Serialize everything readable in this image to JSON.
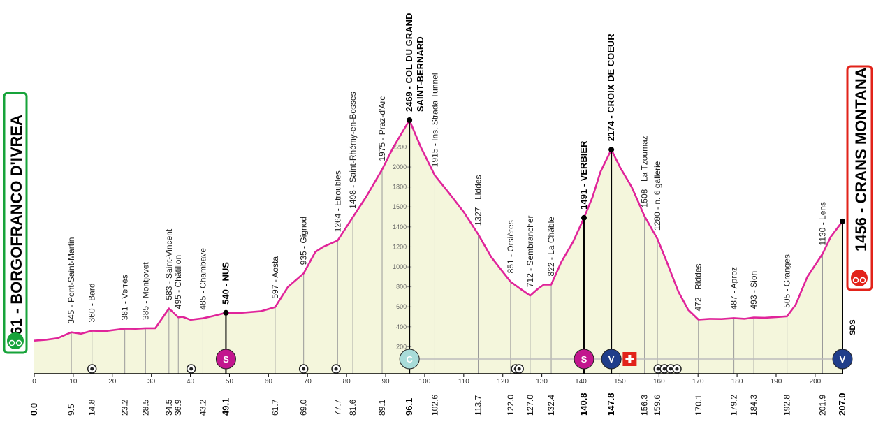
{
  "chart_data": {
    "type": "area",
    "title": "",
    "xlim": [
      0,
      207
    ],
    "ylim": [
      0,
      2469
    ],
    "y_ticks": [
      200,
      400,
      600,
      800,
      1000,
      1200,
      1400,
      1600,
      1800,
      2000,
      2200
    ],
    "x_ticks": [
      "0",
      "10",
      "20",
      "30",
      "40",
      "50",
      "60",
      "70",
      "80",
      "90",
      "100",
      "110",
      "120",
      "130",
      "140",
      "150",
      "160",
      "170",
      "180",
      "190",
      "200"
    ],
    "profile": [
      [
        0,
        261
      ],
      [
        3,
        270
      ],
      [
        6,
        285
      ],
      [
        9.5,
        345
      ],
      [
        12,
        330
      ],
      [
        14.8,
        360
      ],
      [
        18,
        355
      ],
      [
        23.2,
        381
      ],
      [
        26,
        380
      ],
      [
        28.5,
        385
      ],
      [
        31,
        385
      ],
      [
        34.5,
        583
      ],
      [
        36.9,
        495
      ],
      [
        38,
        500
      ],
      [
        40,
        470
      ],
      [
        43.2,
        485
      ],
      [
        46,
        510
      ],
      [
        49.1,
        540
      ],
      [
        53,
        540
      ],
      [
        58,
        555
      ],
      [
        61.7,
        597
      ],
      [
        65,
        800
      ],
      [
        69,
        935
      ],
      [
        72,
        1150
      ],
      [
        74,
        1200
      ],
      [
        77.7,
        1264
      ],
      [
        81.6,
        1498
      ],
      [
        85,
        1700
      ],
      [
        89.1,
        1975
      ],
      [
        92,
        2200
      ],
      [
        96.1,
        2469
      ],
      [
        99,
        2200
      ],
      [
        102.6,
        1915
      ],
      [
        106,
        1750
      ],
      [
        110,
        1550
      ],
      [
        113.7,
        1327
      ],
      [
        117,
        1100
      ],
      [
        120,
        950
      ],
      [
        122,
        851
      ],
      [
        124.5,
        780
      ],
      [
        127,
        712
      ],
      [
        129,
        780
      ],
      [
        130.5,
        822
      ],
      [
        132.4,
        822
      ],
      [
        135,
        1050
      ],
      [
        138,
        1250
      ],
      [
        140.8,
        1491
      ],
      [
        143,
        1700
      ],
      [
        145,
        1950
      ],
      [
        147.8,
        2174
      ],
      [
        150,
        2000
      ],
      [
        153,
        1800
      ],
      [
        156.3,
        1508
      ],
      [
        159.6,
        1280
      ],
      [
        162,
        1050
      ],
      [
        165,
        750
      ],
      [
        167.5,
        570
      ],
      [
        170.1,
        472
      ],
      [
        173,
        480
      ],
      [
        176,
        478
      ],
      [
        179.2,
        487
      ],
      [
        182,
        480
      ],
      [
        184.3,
        493
      ],
      [
        187,
        490
      ],
      [
        190,
        497
      ],
      [
        192.8,
        505
      ],
      [
        195,
        620
      ],
      [
        198,
        900
      ],
      [
        201.9,
        1130
      ],
      [
        204,
        1300
      ],
      [
        207,
        1456
      ]
    ],
    "places": [
      {
        "km": 9.5,
        "alt": 345,
        "label": "345 - Pont-Saint-Martin"
      },
      {
        "km": 14.8,
        "alt": 360,
        "label": "360 - Bard"
      },
      {
        "km": 23.2,
        "alt": 381,
        "label": "381 - Verrès"
      },
      {
        "km": 28.5,
        "alt": 385,
        "label": "385 - Montjovet"
      },
      {
        "km": 34.5,
        "alt": 583,
        "label": "583 - Saint-Vincent"
      },
      {
        "km": 36.9,
        "alt": 495,
        "label": "495 - Châtillon"
      },
      {
        "km": 43.2,
        "alt": 485,
        "label": "485 - Chambave"
      },
      {
        "km": 49.1,
        "alt": 540,
        "label": "540 - NUS",
        "bold": true
      },
      {
        "km": 61.7,
        "alt": 597,
        "label": "597 - Aosta"
      },
      {
        "km": 69.0,
        "alt": 935,
        "label": "935 - Gignod"
      },
      {
        "km": 77.7,
        "alt": 1264,
        "label": "1264 - Etroubles"
      },
      {
        "km": 81.6,
        "alt": 1498,
        "label": "1498 - Saint-Rhémy-en-Bosses"
      },
      {
        "km": 89.1,
        "alt": 1975,
        "label": "1975 - Praz-d'Arc"
      },
      {
        "km": 96.1,
        "alt": 2469,
        "label": "2469 - COL DU GRAND",
        "label2": "SAINT-BERNARD",
        "bold": true
      },
      {
        "km": 102.6,
        "alt": 1915,
        "label": "1915 - Ins. Strada Tunnel"
      },
      {
        "km": 113.7,
        "alt": 1327,
        "label": "1327 - Liddes"
      },
      {
        "km": 122.0,
        "alt": 851,
        "label": "851 - Orsières"
      },
      {
        "km": 127.0,
        "alt": 712,
        "label": "712 - Sembrancher"
      },
      {
        "km": 132.4,
        "alt": 822,
        "label": "822 - La Châble"
      },
      {
        "km": 140.8,
        "alt": 1491,
        "label": "1491 - VERBIER",
        "bold": true
      },
      {
        "km": 147.8,
        "alt": 2174,
        "label": "2174 - CROIX DE COEUR",
        "bold": true
      },
      {
        "km": 156.3,
        "alt": 1508,
        "label": "1508 - La Tzoumaz"
      },
      {
        "km": 159.6,
        "alt": 1280,
        "label": "1280 - n. 6 gallerie"
      },
      {
        "km": 170.1,
        "alt": 472,
        "label": "472 - Riddes"
      },
      {
        "km": 179.2,
        "alt": 487,
        "label": "487 - Aproz"
      },
      {
        "km": 184.3,
        "alt": 493,
        "label": "493 - Sion"
      },
      {
        "km": 192.8,
        "alt": 505,
        "label": "505 - Granges"
      },
      {
        "km": 201.9,
        "alt": 1130,
        "label": "1130 - Lens"
      }
    ],
    "km_labels": [
      {
        "km": 0.0,
        "text": "0.0",
        "bold": true
      },
      {
        "km": 9.5,
        "text": "9.5"
      },
      {
        "km": 14.8,
        "text": "14.8"
      },
      {
        "km": 23.2,
        "text": "23.2"
      },
      {
        "km": 28.5,
        "text": "28.5"
      },
      {
        "km": 34.5,
        "text": "34.5"
      },
      {
        "km": 36.9,
        "text": "36.9"
      },
      {
        "km": 43.2,
        "text": "43.2"
      },
      {
        "km": 49.1,
        "text": "49.1",
        "bold": true
      },
      {
        "km": 61.7,
        "text": "61.7"
      },
      {
        "km": 69.0,
        "text": "69.0"
      },
      {
        "km": 77.7,
        "text": "77.7"
      },
      {
        "km": 81.6,
        "text": "81.6"
      },
      {
        "km": 89.1,
        "text": "89.1"
      },
      {
        "km": 96.1,
        "text": "96.1",
        "bold": true
      },
      {
        "km": 102.6,
        "text": "102.6"
      },
      {
        "km": 113.7,
        "text": "113.7"
      },
      {
        "km": 122.0,
        "text": "122.0"
      },
      {
        "km": 127.0,
        "text": "127.0"
      },
      {
        "km": 132.4,
        "text": "132.4"
      },
      {
        "km": 140.8,
        "text": "140.8",
        "bold": true
      },
      {
        "km": 147.8,
        "text": "147.8",
        "bold": true
      },
      {
        "km": 156.3,
        "text": "156.3"
      },
      {
        "km": 159.6,
        "text": "159.6"
      },
      {
        "km": 170.1,
        "text": "170.1"
      },
      {
        "km": 179.2,
        "text": "179.2"
      },
      {
        "km": 184.3,
        "text": "184.3"
      },
      {
        "km": 192.8,
        "text": "192.8"
      },
      {
        "km": 201.9,
        "text": "201.9"
      },
      {
        "km": 207.0,
        "text": "207.0",
        "bold": true
      }
    ],
    "markers": [
      {
        "km": 49.1,
        "type": "sprint",
        "text": "S",
        "color": "#c2168e"
      },
      {
        "km": 96.1,
        "type": "climb",
        "text": "C",
        "color": "#a8dcd9"
      },
      {
        "km": 140.8,
        "type": "sprint",
        "text": "S",
        "color": "#c2168e"
      },
      {
        "km": 147.8,
        "type": "climb",
        "text": "V",
        "color": "#1f3d8a"
      },
      {
        "km": 207.0,
        "type": "climb",
        "text": "V",
        "color": "#1f3d8a"
      }
    ],
    "tunnels": [
      14.8,
      40.2,
      69.0,
      77.3,
      123.3,
      124.2,
      159.8,
      161.4,
      163.0,
      164.6
    ],
    "border_km": 152.5,
    "start": {
      "text": "261 - BORGOFRANCO D'IVREA",
      "color": "#17a33a"
    },
    "finish": {
      "text": "1456 - CRANS MONTANA",
      "color": "#e2231a"
    },
    "finish_logo": "SDS",
    "colors": {
      "line": "#e0249a",
      "fill": "#f4f6dc",
      "fill_top": "#eef2c8"
    }
  }
}
